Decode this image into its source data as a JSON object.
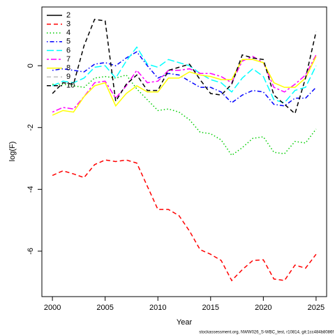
{
  "chart_data": {
    "type": "line",
    "xlabel": "Year",
    "ylabel": "log(F)",
    "footnote": "stockassessment.org, NWW026_S-WBC_test, r10814, git:1cc484b8086f",
    "x": [
      2000,
      2001,
      2002,
      2003,
      2004,
      2005,
      2006,
      2007,
      2008,
      2009,
      2010,
      2011,
      2012,
      2013,
      2014,
      2015,
      2016,
      2017,
      2018,
      2019,
      2020,
      2021,
      2022,
      2023,
      2024,
      2025
    ],
    "xlim": [
      1999,
      2026
    ],
    "xticks": [
      2000,
      2005,
      2010,
      2015,
      2020,
      2025
    ],
    "ylim": [
      -7.47,
      1.9
    ],
    "yticks": [
      -6,
      -4,
      -2,
      0
    ],
    "legend": "topleft",
    "series": [
      {
        "name": "2",
        "color": "#000000",
        "lty": "solid",
        "values": [
          null,
          null,
          null,
          null,
          null,
          null,
          null,
          null,
          null,
          null,
          null,
          null,
          null,
          null,
          null,
          null,
          null,
          null,
          null,
          null,
          null,
          null,
          null,
          null,
          null,
          null
        ]
      },
      {
        "name": "3",
        "color": "#ff0000",
        "lty": "dashed",
        "values": [
          -3.55,
          -3.4,
          -3.5,
          -3.62,
          -3.2,
          -3.05,
          -3.1,
          -3.05,
          -3.15,
          -3.9,
          -4.65,
          -4.65,
          -4.85,
          -5.35,
          -5.95,
          -6.1,
          -6.3,
          -6.95,
          -6.6,
          -6.3,
          -6.28,
          -6.9,
          -6.95,
          -6.45,
          -6.55,
          -6.1
        ]
      },
      {
        "name": "4",
        "color": "#00cd00",
        "lty": "dotted",
        "values": [
          -0.6,
          -0.6,
          -0.65,
          -0.7,
          -0.4,
          -0.35,
          -0.4,
          -0.3,
          -0.75,
          -1.1,
          -1.45,
          -1.4,
          -1.5,
          -1.75,
          -2.15,
          -2.2,
          -2.4,
          -2.9,
          -2.65,
          -2.35,
          -2.3,
          -2.8,
          -2.85,
          -2.45,
          -2.5,
          -2.05
        ]
      },
      {
        "name": "5",
        "color": "#0000ff",
        "lty": "dotdash",
        "values": [
          -0.15,
          -0.1,
          -0.15,
          -0.2,
          0.05,
          0.1,
          0.0,
          0.25,
          0.45,
          0.0,
          -0.4,
          -0.25,
          -0.3,
          -0.5,
          -0.7,
          -0.7,
          -0.85,
          -1.2,
          -0.95,
          -0.8,
          -0.85,
          -1.25,
          -1.3,
          -1.05,
          -1.05,
          -0.7
        ]
      },
      {
        "name": "6",
        "color": "#00ffff",
        "lty": "longdash",
        "values": [
          -0.65,
          -0.5,
          -0.55,
          -0.4,
          -0.05,
          0.0,
          -0.4,
          0.15,
          0.6,
          0.05,
          -0.05,
          0.2,
          0.1,
          0.0,
          -0.25,
          -0.45,
          -0.55,
          -0.85,
          -0.4,
          -0.1,
          -0.35,
          -1.1,
          -1.2,
          -0.8,
          -0.7,
          0.0
        ]
      },
      {
        "name": "7",
        "color": "#ff00ff",
        "lty": "twodash",
        "values": [
          -1.5,
          -1.35,
          -1.4,
          -1.0,
          -0.55,
          -0.5,
          -1.05,
          -0.65,
          -0.15,
          -0.55,
          -0.5,
          -0.15,
          -0.15,
          -0.1,
          -0.25,
          -0.25,
          -0.35,
          -0.55,
          0.15,
          0.3,
          0.1,
          -0.7,
          -0.85,
          -0.6,
          -0.3,
          0.35
        ]
      },
      {
        "name": "8",
        "color": "#ffff00",
        "lty": "solid",
        "values": [
          -1.6,
          -1.45,
          -1.5,
          -1.0,
          -0.65,
          -0.55,
          -1.3,
          -0.9,
          -0.65,
          -0.85,
          -0.85,
          -0.4,
          -0.4,
          -0.2,
          -0.3,
          -0.35,
          -0.45,
          -0.45,
          0.2,
          0.2,
          0.1,
          -0.55,
          -0.7,
          -0.7,
          -0.4,
          0.3
        ]
      },
      {
        "name": "9",
        "color": "#bebebe",
        "lty": "dashed",
        "values": [
          null,
          null,
          null,
          null,
          null,
          null,
          null,
          null,
          null,
          null,
          null,
          null,
          null,
          null,
          null,
          null,
          null,
          null,
          null,
          null,
          null,
          null,
          null,
          null,
          null,
          null
        ]
      },
      {
        "name": "10",
        "color": "#000000",
        "lty": "dashed",
        "values": [
          -0.9,
          -0.55,
          -0.6,
          0.65,
          1.5,
          1.45,
          -1.15,
          -0.6,
          -0.3,
          -0.8,
          -0.8,
          -0.15,
          -0.05,
          0.05,
          -0.45,
          -0.9,
          -0.95,
          -0.6,
          0.35,
          0.25,
          0.2,
          -0.95,
          -1.25,
          -1.55,
          -0.4,
          1.1
        ]
      }
    ]
  }
}
